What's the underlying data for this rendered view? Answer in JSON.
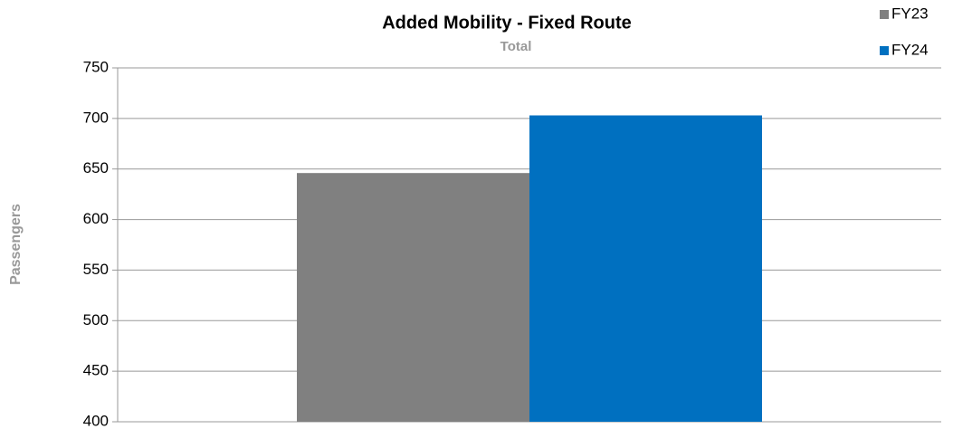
{
  "chart_data": {
    "type": "bar",
    "title": "Added Mobility - Fixed Route",
    "y_label": "Passengers",
    "categories": [
      "Total"
    ],
    "series": [
      {
        "name": "FY23",
        "color": "#808080",
        "values": [
          646
        ]
      },
      {
        "name": "FY24",
        "color": "#0070c0",
        "values": [
          703
        ]
      }
    ],
    "ylim": [
      400,
      750
    ],
    "yticks": [
      400,
      450,
      500,
      550,
      600,
      650,
      700,
      750
    ],
    "grid": true,
    "legend": "top-right"
  }
}
